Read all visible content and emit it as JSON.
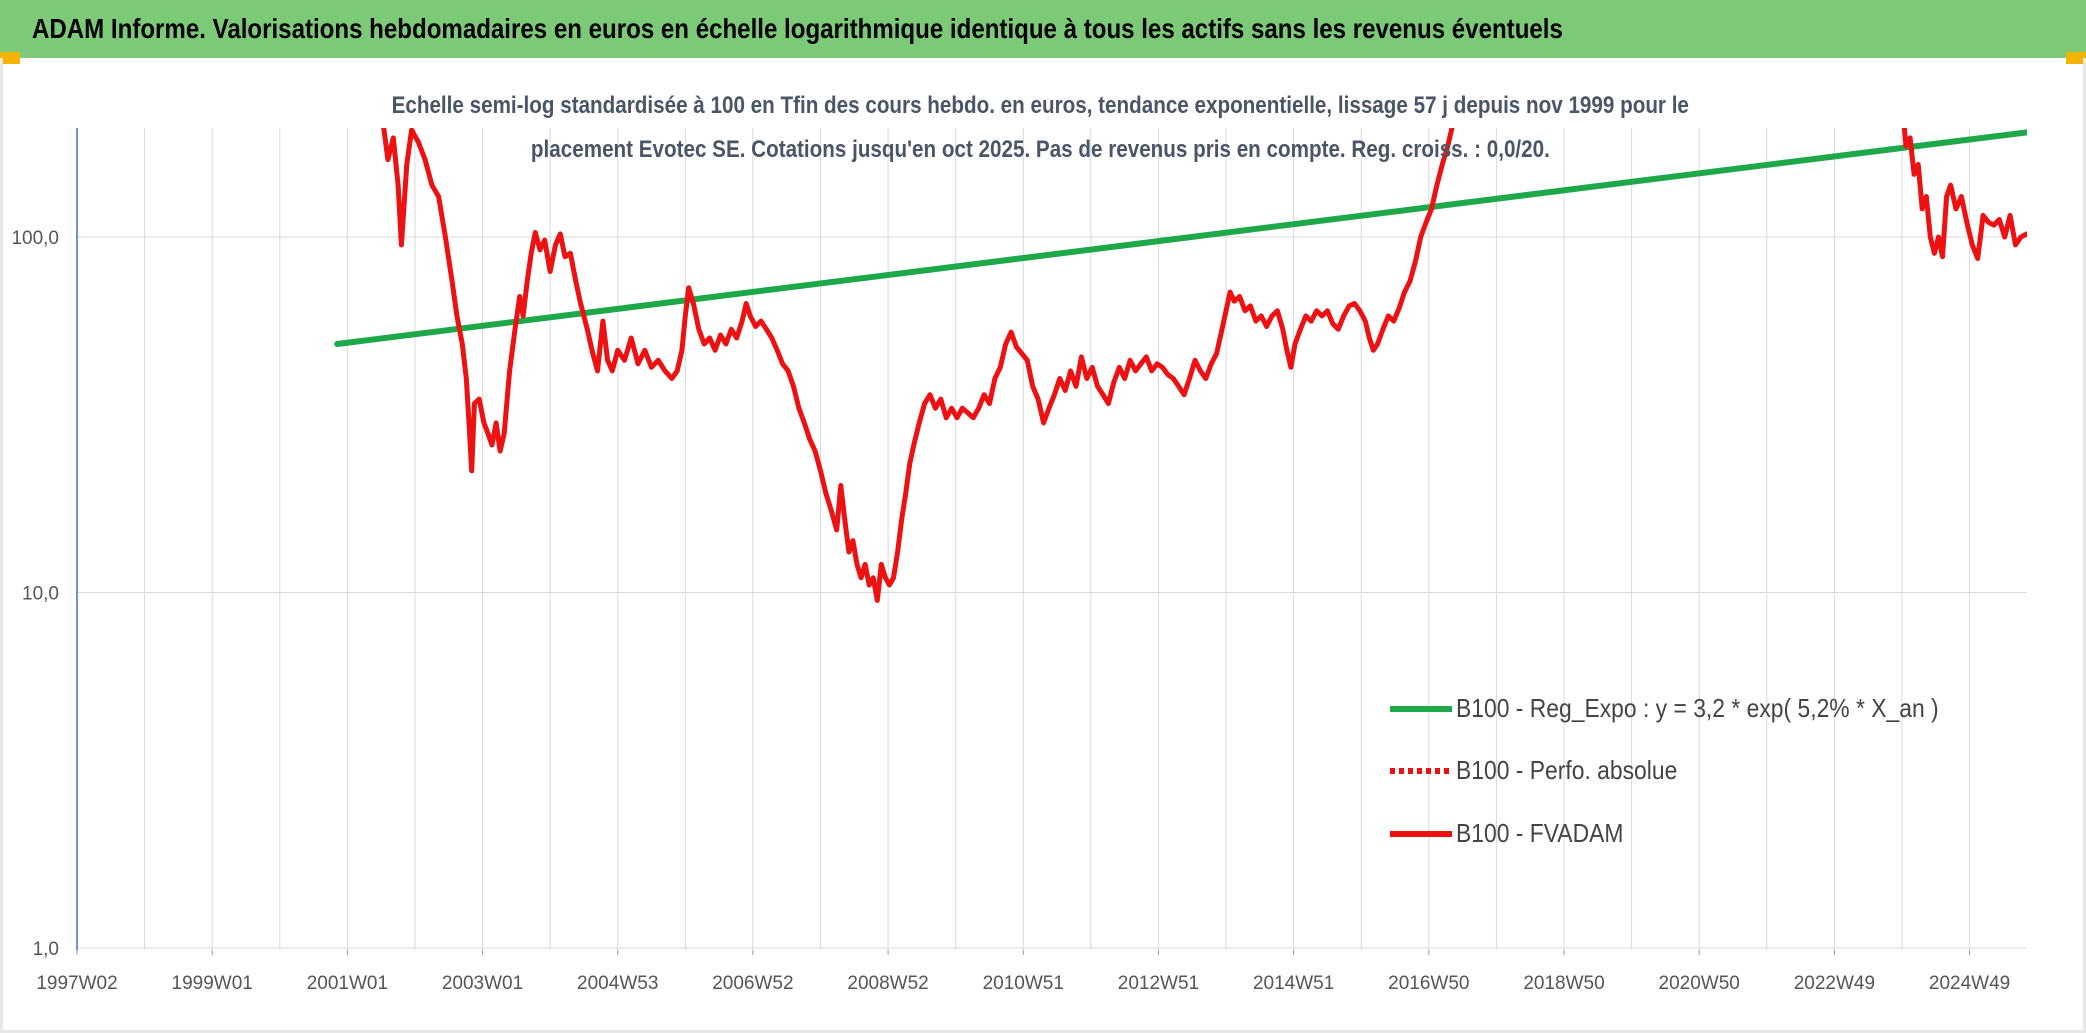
{
  "header": {
    "title": "ADAM Informe. Valorisations hebdomadaires en euros en échelle logarithmique identique à tous les actifs sans les revenus éventuels"
  },
  "colors": {
    "header_bg": "#7cc978",
    "corner": "#f2b400",
    "trend": "#1fa84a",
    "series": "#ee1111",
    "grid": "#d9d9d9"
  },
  "chart_data": {
    "type": "line",
    "title_line1": "Echelle semi-log standardisée à 100 en Tfin des cours hebdo. en euros, tendance exponentielle, lissage 57 j depuis nov 1999 pour le",
    "title_line2": "placement Evotec SE. Cotations jusqu'en oct 2025. Pas de revenus pris en compte. Reg. croiss. : 0,0/20.",
    "y_scale": "log",
    "ylim": [
      1,
      200
    ],
    "y_ticks": [
      {
        "value": 1,
        "label": "1,0"
      },
      {
        "value": 10,
        "label": "10,0"
      },
      {
        "value": 100,
        "label": "100,0"
      }
    ],
    "xlim": [
      1997.0,
      2025.85
    ],
    "x_ticks": [
      {
        "year": 1997.0,
        "label": "1997W02"
      },
      {
        "year": 1999.0,
        "label": "1999W01"
      },
      {
        "year": 2001.0,
        "label": "2001W01"
      },
      {
        "year": 2003.0,
        "label": "2003W01"
      },
      {
        "year": 2005.0,
        "label": "2004W53"
      },
      {
        "year": 2007.0,
        "label": "2006W52"
      },
      {
        "year": 2009.0,
        "label": "2008W52"
      },
      {
        "year": 2011.0,
        "label": "2010W51"
      },
      {
        "year": 2013.0,
        "label": "2012W51"
      },
      {
        "year": 2015.0,
        "label": "2014W51"
      },
      {
        "year": 2017.0,
        "label": "2016W50"
      },
      {
        "year": 2019.0,
        "label": "2018W50"
      },
      {
        "year": 2021.0,
        "label": "2020W50"
      },
      {
        "year": 2023.0,
        "label": "2022W49"
      },
      {
        "year": 2025.0,
        "label": "2024W49"
      }
    ],
    "grid": true,
    "legend_position": "right",
    "legend": [
      {
        "label": "B100 - Reg_Expo : y = 3,2 * exp( 5,2% *  X_an )",
        "color": "#1fa84a",
        "style": "solid"
      },
      {
        "label": "B100 - Perfo. absolue",
        "color": "#ee1111",
        "style": "dotted"
      },
      {
        "label": "B100 - FVADAM",
        "color": "#ee1111",
        "style": "solid"
      }
    ],
    "series": [
      {
        "name": "B100 - Reg_Expo : y = 3,2 * exp( 5,2% *  X_an )",
        "color": "#1fa84a",
        "points": [
          [
            2000.85,
            50
          ],
          [
            2025.85,
            197
          ]
        ]
      },
      {
        "name": "B100 - FVADAM",
        "color": "#ee1111",
        "points": [
          [
            2001.5,
            230
          ],
          [
            2001.6,
            165
          ],
          [
            2001.68,
            190
          ],
          [
            2001.75,
            140
          ],
          [
            2001.8,
            95
          ],
          [
            2001.88,
            160
          ],
          [
            2001.95,
            200
          ],
          [
            2002.05,
            185
          ],
          [
            2002.15,
            165
          ],
          [
            2002.25,
            140
          ],
          [
            2002.35,
            130
          ],
          [
            2002.45,
            100
          ],
          [
            2002.55,
            75
          ],
          [
            2002.62,
            60
          ],
          [
            2002.7,
            50
          ],
          [
            2002.76,
            40
          ],
          [
            2002.8,
            30
          ],
          [
            2002.84,
            22
          ],
          [
            2002.88,
            34
          ],
          [
            2002.95,
            35
          ],
          [
            2003.02,
            30
          ],
          [
            2003.08,
            28
          ],
          [
            2003.14,
            26
          ],
          [
            2003.2,
            30
          ],
          [
            2003.26,
            25
          ],
          [
            2003.32,
            28
          ],
          [
            2003.4,
            42
          ],
          [
            2003.48,
            55
          ],
          [
            2003.55,
            68
          ],
          [
            2003.6,
            60
          ],
          [
            2003.66,
            75
          ],
          [
            2003.72,
            90
          ],
          [
            2003.78,
            103
          ],
          [
            2003.85,
            92
          ],
          [
            2003.92,
            98
          ],
          [
            2004.0,
            80
          ],
          [
            2004.08,
            95
          ],
          [
            2004.15,
            102
          ],
          [
            2004.22,
            88
          ],
          [
            2004.3,
            90
          ],
          [
            2004.38,
            75
          ],
          [
            2004.45,
            65
          ],
          [
            2004.55,
            55
          ],
          [
            2004.62,
            48
          ],
          [
            2004.7,
            42
          ],
          [
            2004.78,
            58
          ],
          [
            2004.85,
            45
          ],
          [
            2004.92,
            42
          ],
          [
            2005.0,
            48
          ],
          [
            2005.1,
            45
          ],
          [
            2005.2,
            52
          ],
          [
            2005.3,
            44
          ],
          [
            2005.4,
            48
          ],
          [
            2005.5,
            43
          ],
          [
            2005.6,
            45
          ],
          [
            2005.7,
            42
          ],
          [
            2005.8,
            40
          ],
          [
            2005.88,
            42
          ],
          [
            2005.95,
            48
          ],
          [
            2006.0,
            60
          ],
          [
            2006.05,
            72
          ],
          [
            2006.12,
            65
          ],
          [
            2006.2,
            55
          ],
          [
            2006.28,
            50
          ],
          [
            2006.36,
            52
          ],
          [
            2006.44,
            48
          ],
          [
            2006.52,
            53
          ],
          [
            2006.6,
            50
          ],
          [
            2006.68,
            55
          ],
          [
            2006.76,
            52
          ],
          [
            2006.84,
            58
          ],
          [
            2006.9,
            65
          ],
          [
            2006.96,
            60
          ],
          [
            2007.04,
            56
          ],
          [
            2007.12,
            58
          ],
          [
            2007.2,
            55
          ],
          [
            2007.28,
            52
          ],
          [
            2007.36,
            48
          ],
          [
            2007.44,
            44
          ],
          [
            2007.52,
            42
          ],
          [
            2007.6,
            38
          ],
          [
            2007.68,
            33
          ],
          [
            2007.76,
            30
          ],
          [
            2007.84,
            27
          ],
          [
            2007.92,
            25
          ],
          [
            2008.0,
            22
          ],
          [
            2008.08,
            19
          ],
          [
            2008.16,
            17
          ],
          [
            2008.24,
            15
          ],
          [
            2008.3,
            20
          ],
          [
            2008.36,
            16
          ],
          [
            2008.42,
            13
          ],
          [
            2008.48,
            14
          ],
          [
            2008.54,
            12
          ],
          [
            2008.6,
            11
          ],
          [
            2008.66,
            12
          ],
          [
            2008.72,
            10.5
          ],
          [
            2008.78,
            11
          ],
          [
            2008.84,
            9.5
          ],
          [
            2008.9,
            12
          ],
          [
            2008.96,
            11
          ],
          [
            2009.02,
            10.5
          ],
          [
            2009.08,
            11
          ],
          [
            2009.14,
            13
          ],
          [
            2009.2,
            16
          ],
          [
            2009.26,
            19
          ],
          [
            2009.32,
            23
          ],
          [
            2009.38,
            26
          ],
          [
            2009.46,
            30
          ],
          [
            2009.54,
            34
          ],
          [
            2009.62,
            36
          ],
          [
            2009.7,
            33
          ],
          [
            2009.78,
            35
          ],
          [
            2009.86,
            31
          ],
          [
            2009.94,
            33
          ],
          [
            2010.02,
            31
          ],
          [
            2010.1,
            33
          ],
          [
            2010.18,
            32
          ],
          [
            2010.26,
            31
          ],
          [
            2010.34,
            33
          ],
          [
            2010.42,
            36
          ],
          [
            2010.5,
            34
          ],
          [
            2010.58,
            40
          ],
          [
            2010.66,
            43
          ],
          [
            2010.74,
            50
          ],
          [
            2010.82,
            54
          ],
          [
            2010.9,
            49
          ],
          [
            2010.98,
            47
          ],
          [
            2011.06,
            45
          ],
          [
            2011.14,
            38
          ],
          [
            2011.22,
            35
          ],
          [
            2011.3,
            30
          ],
          [
            2011.38,
            33
          ],
          [
            2011.46,
            36
          ],
          [
            2011.54,
            40
          ],
          [
            2011.62,
            37
          ],
          [
            2011.7,
            42
          ],
          [
            2011.78,
            38
          ],
          [
            2011.86,
            46
          ],
          [
            2011.94,
            40
          ],
          [
            2012.02,
            43
          ],
          [
            2012.1,
            38
          ],
          [
            2012.18,
            36
          ],
          [
            2012.26,
            34
          ],
          [
            2012.34,
            39
          ],
          [
            2012.42,
            43
          ],
          [
            2012.5,
            40
          ],
          [
            2012.58,
            45
          ],
          [
            2012.66,
            42
          ],
          [
            2012.74,
            44
          ],
          [
            2012.82,
            46
          ],
          [
            2012.9,
            42
          ],
          [
            2012.98,
            44
          ],
          [
            2013.06,
            43
          ],
          [
            2013.14,
            41
          ],
          [
            2013.22,
            40
          ],
          [
            2013.3,
            38
          ],
          [
            2013.38,
            36
          ],
          [
            2013.46,
            40
          ],
          [
            2013.54,
            45
          ],
          [
            2013.62,
            42
          ],
          [
            2013.7,
            40
          ],
          [
            2013.78,
            44
          ],
          [
            2013.86,
            47
          ],
          [
            2013.94,
            55
          ],
          [
            2014.0,
            62
          ],
          [
            2014.06,
            70
          ],
          [
            2014.12,
            66
          ],
          [
            2014.2,
            68
          ],
          [
            2014.28,
            62
          ],
          [
            2014.36,
            64
          ],
          [
            2014.44,
            58
          ],
          [
            2014.52,
            60
          ],
          [
            2014.6,
            56
          ],
          [
            2014.68,
            60
          ],
          [
            2014.76,
            62
          ],
          [
            2014.84,
            55
          ],
          [
            2014.9,
            48
          ],
          [
            2014.96,
            43
          ],
          [
            2015.02,
            50
          ],
          [
            2015.1,
            55
          ],
          [
            2015.18,
            60
          ],
          [
            2015.26,
            58
          ],
          [
            2015.34,
            62
          ],
          [
            2015.42,
            60
          ],
          [
            2015.5,
            62
          ],
          [
            2015.58,
            57
          ],
          [
            2015.66,
            55
          ],
          [
            2015.74,
            60
          ],
          [
            2015.82,
            64
          ],
          [
            2015.9,
            65
          ],
          [
            2015.98,
            62
          ],
          [
            2016.06,
            58
          ],
          [
            2016.12,
            52
          ],
          [
            2016.18,
            48
          ],
          [
            2016.24,
            50
          ],
          [
            2016.32,
            55
          ],
          [
            2016.4,
            60
          ],
          [
            2016.48,
            58
          ],
          [
            2016.56,
            63
          ],
          [
            2016.64,
            70
          ],
          [
            2016.72,
            75
          ],
          [
            2016.8,
            85
          ],
          [
            2016.88,
            100
          ],
          [
            2016.96,
            110
          ],
          [
            2017.04,
            120
          ],
          [
            2017.12,
            140
          ],
          [
            2017.2,
            160
          ],
          [
            2017.28,
            180
          ],
          [
            2017.36,
            210
          ],
          [
            2017.44,
            240
          ],
          [
            2017.52,
            230
          ],
          [
            2017.6,
            250
          ],
          [
            2017.9,
            210
          ],
          [
            2017.96,
            230
          ],
          [
            2018.3,
            220
          ],
          [
            2018.36,
            240
          ],
          [
            2024.0,
            240
          ],
          [
            2024.06,
            180
          ],
          [
            2024.12,
            190
          ],
          [
            2024.18,
            150
          ],
          [
            2024.24,
            160
          ],
          [
            2024.3,
            120
          ],
          [
            2024.36,
            130
          ],
          [
            2024.42,
            100
          ],
          [
            2024.48,
            90
          ],
          [
            2024.54,
            100
          ],
          [
            2024.6,
            88
          ],
          [
            2024.66,
            130
          ],
          [
            2024.72,
            140
          ],
          [
            2024.8,
            120
          ],
          [
            2024.88,
            130
          ],
          [
            2024.96,
            110
          ],
          [
            2025.04,
            95
          ],
          [
            2025.12,
            87
          ],
          [
            2025.2,
            115
          ],
          [
            2025.28,
            110
          ],
          [
            2025.36,
            108
          ],
          [
            2025.44,
            112
          ],
          [
            2025.52,
            100
          ],
          [
            2025.6,
            115
          ],
          [
            2025.68,
            95
          ],
          [
            2025.76,
            100
          ],
          [
            2025.85,
            102
          ]
        ]
      }
    ]
  }
}
